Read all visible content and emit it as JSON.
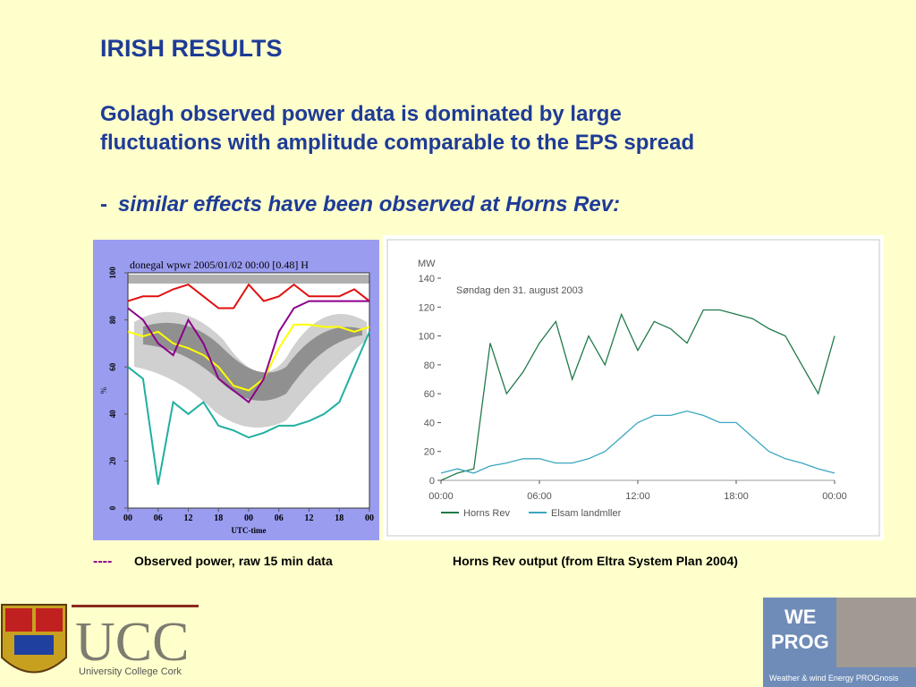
{
  "title": "IRISH RESULTS",
  "subtitle": {
    "lines": [
      "Golagh observed power data is dominated by large",
      "fluctuations with amplitude comparable to the EPS spread"
    ]
  },
  "bullet": {
    "marker": "-",
    "text": "similar effects have been observed at Horns Rev:"
  },
  "chart_data": [
    {
      "type": "line",
      "title": "donegal wpwr 2005/01/02 00:00 [0.48] H",
      "x_label": "UTC-time",
      "y_label": "%",
      "x": [
        0,
        3,
        6,
        9,
        12,
        15,
        18,
        21,
        24,
        27,
        30,
        33,
        36,
        39,
        42,
        45,
        48
      ],
      "series": [
        {
          "color": "#e01010",
          "values": [
            88,
            90,
            90,
            93,
            95,
            90,
            85,
            85,
            95,
            88,
            90,
            95,
            90,
            90,
            90,
            93,
            88
          ]
        },
        {
          "color": "#ffff00",
          "values": [
            75,
            73,
            75,
            70,
            68,
            65,
            60,
            52,
            50,
            55,
            68,
            78,
            78,
            77,
            77,
            75,
            77
          ]
        },
        {
          "color": "#20b0a0",
          "values": [
            60,
            55,
            10,
            45,
            40,
            45,
            35,
            33,
            30,
            32,
            35,
            35,
            37,
            40,
            45,
            60,
            75
          ]
        },
        {
          "color": "#8b008b",
          "values": [
            85,
            80,
            70,
            65,
            80,
            70,
            55,
            50,
            45,
            55,
            75,
            85,
            88,
            88,
            88,
            88,
            88
          ]
        }
      ],
      "xlim": [
        0,
        48
      ],
      "xticks": [
        {
          "value": 0,
          "label": "00"
        },
        {
          "value": 6,
          "label": "06"
        },
        12,
        18,
        {
          "value": 24,
          "label": "00"
        },
        {
          "value": 30,
          "label": "06"
        },
        {
          "value": 36,
          "label": "12"
        },
        {
          "value": 42,
          "label": "18"
        },
        {
          "value": 48,
          "label": "00"
        }
      ],
      "ylim": [
        0,
        100
      ],
      "yticks": [
        0,
        20,
        40,
        60,
        80,
        100
      ]
    },
    {
      "type": "line",
      "annotation": "Søndag den 31. august 2003",
      "y_label": "MW",
      "x": [
        0,
        1,
        2,
        3,
        4,
        5,
        6,
        7,
        8,
        9,
        10,
        11,
        12,
        13,
        14,
        15,
        16,
        17,
        18,
        19,
        20,
        21,
        22,
        23,
        24
      ],
      "series": [
        {
          "name": "Horns Rev",
          "color": "#1f7a4a",
          "values": [
            0,
            5,
            8,
            95,
            60,
            75,
            95,
            110,
            70,
            100,
            80,
            115,
            90,
            110,
            105,
            95,
            118,
            118,
            115,
            112,
            105,
            100,
            80,
            60,
            100
          ]
        },
        {
          "name": "Elsam landmller",
          "color": "#3aa6c0",
          "values": [
            5,
            8,
            5,
            10,
            12,
            15,
            15,
            12,
            12,
            15,
            20,
            30,
            40,
            45,
            45,
            48,
            45,
            40,
            40,
            30,
            20,
            15,
            12,
            8,
            5
          ]
        }
      ],
      "xlim": [
        0,
        24
      ],
      "xticks": [
        {
          "value": 0,
          "label": "00:00"
        },
        {
          "value": 6,
          "label": "06:00"
        },
        {
          "value": 12,
          "label": "12:00"
        },
        {
          "value": 18,
          "label": "18:00"
        },
        {
          "value": 24,
          "label": "00:00"
        }
      ],
      "ylim": [
        0,
        140
      ],
      "yticks": [
        0,
        20,
        40,
        60,
        80,
        100,
        120,
        140
      ]
    }
  ],
  "captions": [
    {
      "marker": "----",
      "text": "Observed power, raw 15 min data"
    },
    {
      "text": "Horns Rev output (from Eltra System Plan 2004)"
    }
  ],
  "logos": {
    "left": {
      "name": "UCC",
      "full": "University College Cork"
    },
    "right": {
      "line1": "WE",
      "line2": "PROG",
      "tagline": "Weather & wind Energy PROGnosis"
    }
  }
}
